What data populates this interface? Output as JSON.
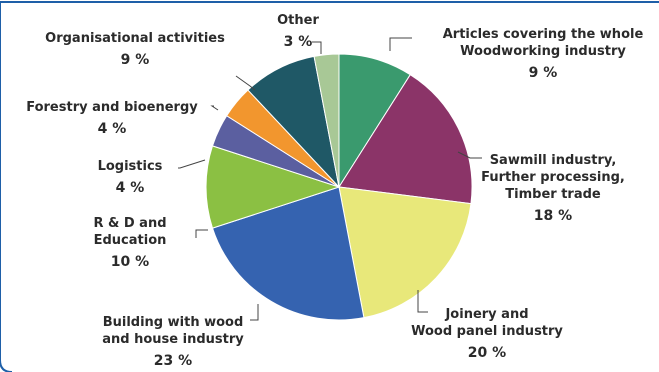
{
  "chart_data": {
    "type": "pie",
    "title": "",
    "slices": [
      {
        "label_lines": [
          "Articles covering the whole",
          "Woodworking industry"
        ],
        "pct_label": "9 %",
        "value": 9,
        "color": "#3a9a6e"
      },
      {
        "label_lines": [
          "Sawmill industry,",
          "Further processing,",
          "Timber trade"
        ],
        "pct_label": "18 %",
        "value": 18,
        "color": "#8b3468"
      },
      {
        "label_lines": [
          "Joinery and",
          "Wood panel industry"
        ],
        "pct_label": "20 %",
        "value": 20,
        "color": "#e8e87a"
      },
      {
        "label_lines": [
          "Building with wood",
          "and house industry"
        ],
        "pct_label": "23 %",
        "value": 23,
        "color": "#3563b0"
      },
      {
        "label_lines": [
          "R & D and",
          "Education"
        ],
        "pct_label": "10 %",
        "value": 10,
        "color": "#8bc043"
      },
      {
        "label_lines": [
          "Logistics"
        ],
        "pct_label": "4 %",
        "value": 4,
        "color": "#5b5fa0"
      },
      {
        "label_lines": [
          "Forestry and bioenergy"
        ],
        "pct_label": "4 %",
        "value": 4,
        "color": "#f2962e"
      },
      {
        "label_lines": [
          "Organisational activities"
        ],
        "pct_label": "9 %",
        "value": 9,
        "color": "#1f5866"
      },
      {
        "label_lines": [
          "Other"
        ],
        "pct_label": "3 %",
        "value": 3,
        "color": "#a8c896"
      }
    ]
  }
}
